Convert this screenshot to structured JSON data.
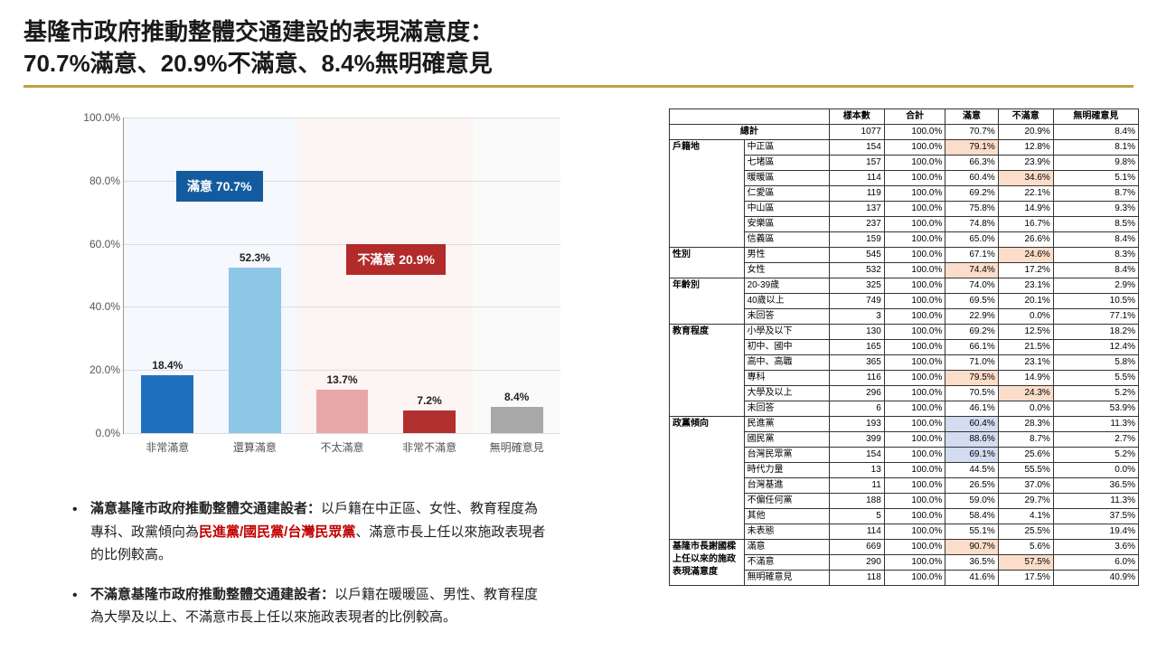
{
  "title_line1": "基隆市政府推動整體交通建設的表現滿意度：",
  "title_line2": "70.7%滿意、20.9%不滿意、8.4%無明確意見",
  "chart": {
    "ymax": 100,
    "ytick_step": 20,
    "yticks": [
      "0.0%",
      "20.0%",
      "40.0%",
      "60.0%",
      "80.0%",
      "100.0%"
    ],
    "regions": [
      {
        "class": "blue",
        "start": 0,
        "end": 40
      },
      {
        "class": "red",
        "start": 40,
        "end": 80
      },
      {
        "class": "grey",
        "start": 80,
        "end": 100
      }
    ],
    "banners": [
      {
        "class": "blue",
        "text": "滿意 70.7%",
        "left_pct": 12,
        "top_pct": 17
      },
      {
        "class": "red",
        "text": "不滿意 20.9%",
        "left_pct": 51,
        "top_pct": 40
      }
    ],
    "bars": [
      {
        "label": "非常滿意",
        "value": 18.4,
        "display": "18.4%",
        "color": "#1f6fbf",
        "center_pct": 10,
        "width_pct": 12
      },
      {
        "label": "還算滿意",
        "value": 52.3,
        "display": "52.3%",
        "color": "#8ec6e8",
        "center_pct": 30,
        "width_pct": 12
      },
      {
        "label": "不太滿意",
        "value": 13.7,
        "display": "13.7%",
        "color": "#e8a7a7",
        "center_pct": 50,
        "width_pct": 12
      },
      {
        "label": "非常不滿意",
        "value": 7.2,
        "display": "7.2%",
        "color": "#b23030",
        "center_pct": 70,
        "width_pct": 12
      },
      {
        "label": "無明確意見",
        "value": 8.4,
        "display": "8.4%",
        "color": "#a8a8a8",
        "center_pct": 90,
        "width_pct": 12
      }
    ]
  },
  "bullets": [
    {
      "lead": "滿意基隆市政府推動整體交通建設者：",
      "prefix": "以戶籍在中正區、女性、教育程度為專科、政黨傾向為",
      "party": "民進黨/國民黨/台灣民眾黨",
      "suffix": "、滿意市長上任以來施政表現者的比例較高。"
    },
    {
      "lead": "不滿意基隆市政府推動整體交通建設者：",
      "prefix": "以戶籍在暖暖區、男性、教育程度為大學及以上、不滿意市長上任以來施政表現者的比例較高。",
      "party": "",
      "suffix": ""
    }
  ],
  "table": {
    "headers": [
      "",
      "",
      "樣本數",
      "合計",
      "滿意",
      "不滿意",
      "無明確意見"
    ],
    "highlight_orange": "#fcddc9",
    "highlight_blue": "#d3dcf0",
    "rows": [
      {
        "group": "總計",
        "groupspan": 1,
        "skipLabel": true,
        "cells": [
          "1077",
          "100.0%",
          "70.7%",
          "20.9%",
          "8.4%"
        ]
      },
      {
        "group": "戶籍地",
        "groupspan": 7,
        "label": "中正區",
        "cells": [
          "154",
          "100.0%",
          "79.1%",
          "12.8%",
          "8.1%"
        ],
        "hl": {
          "2": "o"
        }
      },
      {
        "label": "七堵區",
        "cells": [
          "157",
          "100.0%",
          "66.3%",
          "23.9%",
          "9.8%"
        ]
      },
      {
        "label": "暖暖區",
        "cells": [
          "114",
          "100.0%",
          "60.4%",
          "34.6%",
          "5.1%"
        ],
        "hl": {
          "3": "o"
        }
      },
      {
        "label": "仁愛區",
        "cells": [
          "119",
          "100.0%",
          "69.2%",
          "22.1%",
          "8.7%"
        ]
      },
      {
        "label": "中山區",
        "cells": [
          "137",
          "100.0%",
          "75.8%",
          "14.9%",
          "9.3%"
        ]
      },
      {
        "label": "安樂區",
        "cells": [
          "237",
          "100.0%",
          "74.8%",
          "16.7%",
          "8.5%"
        ]
      },
      {
        "label": "信義區",
        "cells": [
          "159",
          "100.0%",
          "65.0%",
          "26.6%",
          "8.4%"
        ]
      },
      {
        "group": "性別",
        "groupspan": 2,
        "label": "男性",
        "cells": [
          "545",
          "100.0%",
          "67.1%",
          "24.6%",
          "8.3%"
        ],
        "hl": {
          "3": "o"
        }
      },
      {
        "label": "女性",
        "cells": [
          "532",
          "100.0%",
          "74.4%",
          "17.2%",
          "8.4%"
        ],
        "hl": {
          "2": "o"
        }
      },
      {
        "group": "年齡別",
        "groupspan": 3,
        "label": "20-39歲",
        "cells": [
          "325",
          "100.0%",
          "74.0%",
          "23.1%",
          "2.9%"
        ]
      },
      {
        "label": "40歲以上",
        "cells": [
          "749",
          "100.0%",
          "69.5%",
          "20.1%",
          "10.5%"
        ]
      },
      {
        "label": "未回答",
        "cells": [
          "3",
          "100.0%",
          "22.9%",
          "0.0%",
          "77.1%"
        ]
      },
      {
        "group": "教育程度",
        "groupspan": 6,
        "label": "小學及以下",
        "cells": [
          "130",
          "100.0%",
          "69.2%",
          "12.5%",
          "18.2%"
        ]
      },
      {
        "label": "初中、國中",
        "cells": [
          "165",
          "100.0%",
          "66.1%",
          "21.5%",
          "12.4%"
        ]
      },
      {
        "label": "高中、高職",
        "cells": [
          "365",
          "100.0%",
          "71.0%",
          "23.1%",
          "5.8%"
        ]
      },
      {
        "label": "專科",
        "cells": [
          "116",
          "100.0%",
          "79.5%",
          "14.9%",
          "5.5%"
        ],
        "hl": {
          "2": "o"
        }
      },
      {
        "label": "大學及以上",
        "cells": [
          "296",
          "100.0%",
          "70.5%",
          "24.3%",
          "5.2%"
        ],
        "hl": {
          "3": "o"
        }
      },
      {
        "label": "未回答",
        "cells": [
          "6",
          "100.0%",
          "46.1%",
          "0.0%",
          "53.9%"
        ]
      },
      {
        "group": "政黨傾向",
        "groupspan": 8,
        "label": "民進黨",
        "cells": [
          "193",
          "100.0%",
          "60.4%",
          "28.3%",
          "11.3%"
        ],
        "hl": {
          "2": "b"
        }
      },
      {
        "label": "國民黨",
        "cells": [
          "399",
          "100.0%",
          "88.6%",
          "8.7%",
          "2.7%"
        ],
        "hl": {
          "2": "b"
        }
      },
      {
        "label": "台灣民眾黨",
        "cells": [
          "154",
          "100.0%",
          "69.1%",
          "25.6%",
          "5.2%"
        ],
        "hl": {
          "2": "b"
        }
      },
      {
        "label": "時代力量",
        "cells": [
          "13",
          "100.0%",
          "44.5%",
          "55.5%",
          "0.0%"
        ]
      },
      {
        "label": "台灣基進",
        "cells": [
          "11",
          "100.0%",
          "26.5%",
          "37.0%",
          "36.5%"
        ]
      },
      {
        "label": "不偏任何黨",
        "cells": [
          "188",
          "100.0%",
          "59.0%",
          "29.7%",
          "11.3%"
        ]
      },
      {
        "label": "其他",
        "cells": [
          "5",
          "100.0%",
          "58.4%",
          "4.1%",
          "37.5%"
        ]
      },
      {
        "label": "未表態",
        "cells": [
          "114",
          "100.0%",
          "55.1%",
          "25.5%",
          "19.4%"
        ]
      },
      {
        "group": "基隆市長謝國樑上任以來的施政表現滿意度",
        "groupspan": 3,
        "label": "滿意",
        "cells": [
          "669",
          "100.0%",
          "90.7%",
          "5.6%",
          "3.6%"
        ],
        "hl": {
          "2": "o"
        }
      },
      {
        "label": "不滿意",
        "cells": [
          "290",
          "100.0%",
          "36.5%",
          "57.5%",
          "6.0%"
        ],
        "hl": {
          "3": "o"
        }
      },
      {
        "label": "無明確意見",
        "cells": [
          "118",
          "100.0%",
          "41.6%",
          "17.5%",
          "40.9%"
        ]
      }
    ]
  }
}
